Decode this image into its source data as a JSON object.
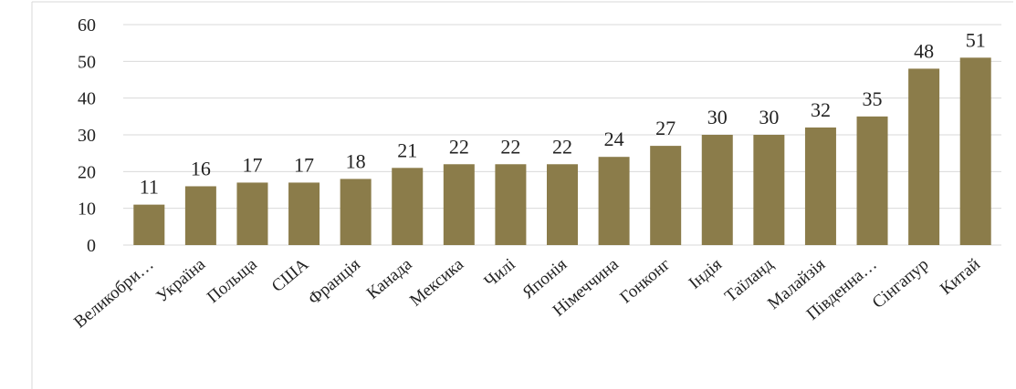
{
  "chart_data": {
    "type": "bar",
    "categories": [
      "Великобри…",
      "Україна",
      "Польща",
      "США",
      "Франція",
      "Канада",
      "Мексика",
      "Чилі",
      "Японія",
      "Німеччина",
      "Гонконг",
      "Індія",
      "Таїланд",
      "Малайзія",
      "Південна…",
      "Сінгапур",
      "Китай"
    ],
    "values": [
      11,
      16,
      17,
      17,
      18,
      21,
      22,
      22,
      22,
      24,
      27,
      30,
      30,
      32,
      35,
      48,
      51
    ],
    "data_labels": [
      "11",
      "16",
      "17",
      "17",
      "18",
      "21",
      "22",
      "22",
      "22",
      "24",
      "27",
      "30",
      "30",
      "32",
      "35",
      "48",
      "51"
    ],
    "y_ticks": [
      "0",
      "10",
      "20",
      "30",
      "40",
      "50",
      "60"
    ],
    "ylim": [
      0,
      60
    ],
    "bar_color": "#8b7c4a",
    "grid": true,
    "title": "",
    "xlabel": "",
    "ylabel": ""
  }
}
